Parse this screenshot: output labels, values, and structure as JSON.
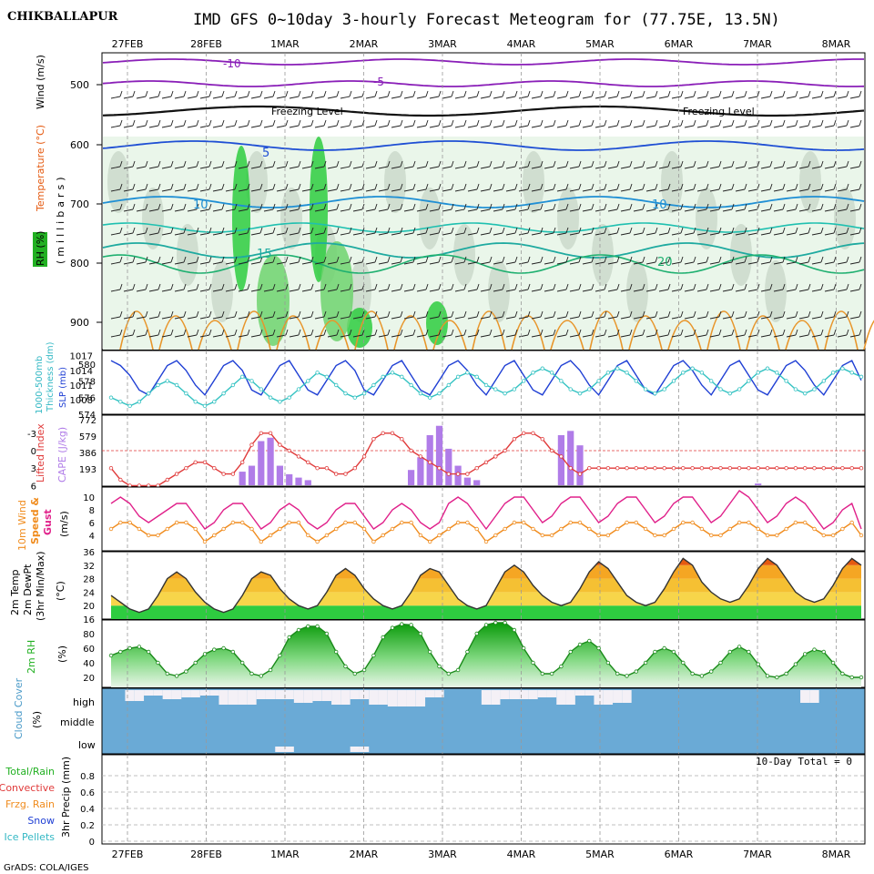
{
  "header": {
    "station": "CHIKBALLAPUR",
    "title": "IMD GFS 0~10day 3-hourly Forecast Meteogram for (77.75E, 13.5N)",
    "footer": "GrADS: COLA/IGES"
  },
  "dates": [
    "27FEB",
    "28FEB",
    "1MAR",
    "2MAR",
    "3MAR",
    "4MAR",
    "5MAR",
    "6MAR",
    "7MAR",
    "8MAR"
  ],
  "colors": {
    "slp": "#1f3fd4",
    "thickness": "#33c2c2",
    "lifted": "#e03a3a",
    "cape": "#b07ce8",
    "gust": "#e0208a",
    "wind": "#f08c1e",
    "rh": "#22c022",
    "cloud": "#6aaad6",
    "temp_hot": "#e55a10",
    "temp_warm": "#f5a623",
    "temp_mild": "#f7d54a",
    "temp_cool": "#2ecc40",
    "freezing": "#000000"
  },
  "panels": {
    "upper": {
      "left_labels": [
        "RH (%)",
        "Temperature (°C)",
        "Wind (m/s)"
      ],
      "axis_label": "(millibars)",
      "yticks": [
        "500",
        "600",
        "700",
        "800",
        "900"
      ],
      "freezing_label": "Freezing Level",
      "iso_labels": [
        "-10",
        "-5",
        "5",
        "10",
        "15",
        "20"
      ]
    },
    "slp": {
      "left_labels": [
        "1000-500mb",
        "Thickness (dm)",
        "SLP (mb)"
      ],
      "left_ticks": [
        "580",
        "578",
        "576",
        "574"
      ],
      "right_ticks": [
        "1017",
        "1014",
        "1011",
        "1008"
      ]
    },
    "cape": {
      "left_labels": [
        "Lifted Index",
        "CAPE (J/kg)"
      ],
      "left_ticks": [
        "-3",
        "0",
        "3",
        "6"
      ],
      "right_ticks": [
        "772",
        "579",
        "386",
        "193"
      ]
    },
    "wind": {
      "left_labels": [
        "10m Wind",
        "Speed &",
        "Gust",
        "(m/s)"
      ],
      "yticks": [
        "10",
        "8",
        "6",
        "4"
      ]
    },
    "temp": {
      "left_labels": [
        "2m Temp",
        "2m DewPt",
        "(3hr Min/Max)",
        "(°C)"
      ],
      "yticks": [
        "36",
        "32",
        "28",
        "24",
        "20",
        "16"
      ]
    },
    "rh": {
      "left_labels": [
        "2m RH",
        "(%)"
      ],
      "yticks": [
        "80",
        "60",
        "40",
        "20"
      ]
    },
    "cloud": {
      "left_labels": [
        "Cloud Cover",
        "(%)"
      ],
      "levels": [
        "high",
        "middle",
        "low"
      ]
    },
    "precip": {
      "left_labels": [
        "Total/Rain",
        "Convective",
        "Frzg. Rain",
        "Snow",
        "Ice Pellets"
      ],
      "axis_label": "3hr Precip (mm)",
      "yticks": [
        "0.8",
        "0.6",
        "0.4",
        "0.2",
        "0"
      ],
      "total_label": "10-Day Total = 0"
    }
  },
  "chart_data": [
    {
      "type": "line",
      "title": "SLP (mb) and 1000-500mb Thickness (dm)",
      "series": [
        {
          "name": "SLP (mb)",
          "values": [
            1016,
            1015,
            1013,
            1010,
            1009,
            1012,
            1015,
            1016,
            1014,
            1011,
            1009,
            1012,
            1015,
            1016,
            1014,
            1010,
            1009,
            1012,
            1015,
            1016,
            1013,
            1010,
            1009,
            1012,
            1015,
            1016,
            1014,
            1010,
            1009,
            1012,
            1015,
            1016,
            1013,
            1010,
            1009,
            1012,
            1015,
            1016,
            1014,
            1011,
            1009,
            1012,
            1015,
            1016,
            1013,
            1010,
            1009,
            1012,
            1015,
            1016,
            1014,
            1011,
            1009,
            1012,
            1015,
            1016,
            1013,
            1010,
            1009,
            1012,
            1015,
            1016,
            1014,
            1011,
            1009,
            1012,
            1015,
            1016,
            1013,
            1010,
            1009,
            1012,
            1015,
            1016,
            1014,
            1011,
            1009,
            1012,
            1015,
            1016,
            1012
          ]
        },
        {
          "name": "1000-500mb Thickness (dm)",
          "values": [
            576,
            575.5,
            575,
            575.5,
            576.5,
            577.5,
            578,
            577.5,
            576.5,
            575.5,
            575,
            575.5,
            576.5,
            577.5,
            578.5,
            578,
            577,
            576,
            575.5,
            576,
            577,
            578,
            579,
            578.5,
            577.5,
            576.5,
            576,
            576.5,
            577.5,
            578.5,
            579,
            578.5,
            577.5,
            576.5,
            576,
            576.5,
            577.5,
            578.5,
            579,
            578.5,
            577.5,
            577,
            576.5,
            577,
            578,
            579,
            579.5,
            579,
            578,
            577,
            576.5,
            577,
            578,
            579,
            579.5,
            579,
            578,
            577,
            576.5,
            577,
            578,
            579,
            579.5,
            579,
            578,
            577,
            576.5,
            577,
            578,
            579,
            579.5,
            579,
            578,
            577,
            576.5,
            577,
            578,
            579,
            579.5,
            579,
            578.5
          ]
        }
      ]
    },
    {
      "type": "bar",
      "title": "Lifted Index / CAPE (J/kg)",
      "series": [
        {
          "name": "CAPE (J/kg)",
          "values": [
            0,
            0,
            0,
            0,
            0,
            0,
            0,
            0,
            0,
            0,
            0,
            0,
            0,
            0,
            160,
            230,
            520,
            560,
            230,
            130,
            90,
            60,
            0,
            0,
            0,
            0,
            0,
            0,
            0,
            0,
            0,
            0,
            180,
            330,
            590,
            700,
            430,
            230,
            90,
            60,
            0,
            0,
            0,
            0,
            0,
            0,
            0,
            0,
            590,
            640,
            470,
            0,
            0,
            0,
            0,
            0,
            0,
            0,
            0,
            0,
            0,
            0,
            0,
            0,
            0,
            0,
            0,
            0,
            0,
            20,
            0,
            0,
            0,
            0,
            0,
            0,
            0,
            0,
            0,
            0,
            0
          ]
        },
        {
          "name": "Lifted Index",
          "values": [
            3,
            5,
            6,
            6,
            6,
            6,
            5,
            4,
            3,
            2,
            2,
            3,
            4,
            4,
            2,
            -1,
            -3,
            -3,
            -1,
            0,
            1,
            2,
            3,
            3,
            4,
            4,
            3,
            1,
            -2,
            -3,
            -3,
            -2,
            0,
            1,
            2,
            3,
            4,
            4,
            4,
            3,
            2,
            1,
            0,
            -2,
            -3,
            -3,
            -2,
            0,
            1,
            3,
            4,
            3,
            3,
            3,
            3,
            3,
            3,
            3,
            3,
            3,
            3,
            3,
            3,
            3,
            3,
            3,
            3,
            3,
            3,
            3,
            3,
            3,
            3,
            3,
            3,
            3,
            3,
            3,
            3,
            3,
            3
          ]
        }
      ]
    },
    {
      "type": "line",
      "title": "10m Wind Speed & Gust (m/s)",
      "series": [
        {
          "name": "Gust",
          "values": [
            9,
            10,
            9,
            7,
            6,
            7,
            8,
            9,
            9,
            7,
            5,
            6,
            8,
            9,
            9,
            7,
            5,
            6,
            8,
            9,
            8,
            6,
            5,
            6,
            8,
            9,
            9,
            7,
            5,
            6,
            8,
            9,
            8,
            6,
            5,
            6,
            9,
            10,
            9,
            7,
            5,
            7,
            9,
            10,
            10,
            8,
            6,
            7,
            9,
            10,
            10,
            8,
            6,
            7,
            9,
            10,
            10,
            8,
            6,
            7,
            9,
            10,
            10,
            8,
            6,
            7,
            9,
            11,
            10,
            8,
            6,
            7,
            9,
            10,
            9,
            7,
            5,
            6,
            8,
            9,
            5
          ]
        },
        {
          "name": "Speed",
          "values": [
            5,
            6,
            6,
            5,
            4,
            4,
            5,
            6,
            6,
            5,
            3,
            4,
            5,
            6,
            6,
            5,
            3,
            4,
            5,
            6,
            6,
            4,
            3,
            4,
            5,
            6,
            6,
            5,
            3,
            4,
            5,
            6,
            6,
            4,
            3,
            4,
            5,
            6,
            6,
            5,
            3,
            4,
            5,
            6,
            6,
            5,
            4,
            4,
            5,
            6,
            6,
            5,
            4,
            4,
            5,
            6,
            6,
            5,
            4,
            4,
            5,
            6,
            6,
            5,
            4,
            4,
            5,
            6,
            6,
            5,
            4,
            4,
            5,
            6,
            6,
            5,
            4,
            4,
            5,
            6,
            4
          ]
        }
      ]
    },
    {
      "type": "area",
      "title": "2m Temp (°C)",
      "series": [
        {
          "name": "2m Temp",
          "values": [
            23,
            21,
            19,
            18,
            19,
            23,
            28,
            30,
            28,
            24,
            21,
            19,
            18,
            19,
            23,
            28,
            30,
            29,
            25,
            22,
            20,
            19,
            20,
            24,
            29,
            31,
            29,
            25,
            22,
            20,
            19,
            20,
            24,
            29,
            31,
            30,
            26,
            22,
            20,
            19,
            20,
            25,
            30,
            32,
            30,
            26,
            23,
            21,
            20,
            21,
            25,
            30,
            33,
            31,
            27,
            23,
            21,
            20,
            21,
            25,
            30,
            34,
            32,
            27,
            24,
            22,
            21,
            22,
            26,
            31,
            34,
            32,
            28,
            24,
            22,
            21,
            22,
            26,
            31,
            34,
            32
          ]
        }
      ]
    },
    {
      "type": "area",
      "title": "2m RH (%)",
      "series": [
        {
          "name": "2m RH",
          "values": [
            50,
            55,
            60,
            62,
            55,
            40,
            25,
            22,
            28,
            40,
            52,
            58,
            60,
            55,
            40,
            25,
            22,
            30,
            50,
            75,
            85,
            90,
            90,
            80,
            55,
            35,
            25,
            30,
            50,
            75,
            88,
            93,
            92,
            80,
            55,
            35,
            25,
            30,
            55,
            80,
            92,
            95,
            95,
            85,
            60,
            40,
            25,
            25,
            35,
            55,
            65,
            70,
            60,
            40,
            25,
            22,
            28,
            40,
            55,
            60,
            55,
            40,
            25,
            22,
            28,
            40,
            55,
            62,
            55,
            38,
            22,
            20,
            25,
            38,
            52,
            58,
            55,
            40,
            25,
            20,
            20
          ]
        }
      ]
    },
    {
      "type": "area",
      "title": "Cloud Cover (%)",
      "series": [
        {
          "name": "high",
          "values": [
            0,
            0,
            30,
            30,
            15,
            15,
            25,
            25,
            20,
            20,
            15,
            15,
            40,
            40,
            40,
            40,
            25,
            25,
            25,
            25,
            35,
            35,
            30,
            30,
            40,
            40,
            25,
            25,
            40,
            40,
            45,
            45,
            45,
            45,
            20,
            20,
            0,
            0,
            0,
            0,
            40,
            40,
            25,
            25,
            25,
            25,
            20,
            20,
            40,
            40,
            15,
            15,
            40,
            40,
            35,
            35,
            0,
            0,
            0,
            0,
            0,
            0,
            0,
            0,
            0,
            0,
            0,
            0,
            0,
            0,
            0,
            0,
            0,
            0,
            35,
            35,
            0,
            0,
            0,
            0,
            0
          ]
        },
        {
          "name": "middle",
          "values": [
            0,
            0,
            0,
            0,
            0,
            0,
            0,
            0,
            0,
            0,
            0,
            0,
            0,
            0,
            0,
            0,
            0,
            0,
            0,
            0,
            0,
            0,
            0,
            0,
            0,
            0,
            0,
            0,
            0,
            0,
            0,
            0,
            0,
            0,
            0,
            0,
            0,
            0,
            0,
            0,
            0,
            0,
            0,
            0,
            0,
            0,
            0,
            0,
            0,
            0,
            0,
            0,
            0,
            0,
            0,
            0,
            0,
            0,
            0,
            0,
            0,
            0,
            0,
            0,
            0,
            0,
            0,
            0,
            0,
            0,
            0,
            0,
            0,
            0,
            0,
            0,
            0,
            0,
            0,
            0,
            0
          ]
        },
        {
          "name": "low",
          "values": [
            0,
            0,
            0,
            0,
            0,
            0,
            0,
            0,
            0,
            0,
            0,
            0,
            0,
            0,
            0,
            0,
            0,
            0,
            20,
            20,
            0,
            0,
            0,
            0,
            0,
            0,
            20,
            20,
            0,
            0,
            0,
            0,
            0,
            0,
            0,
            0,
            0,
            0,
            0,
            0,
            0,
            0,
            0,
            0,
            0,
            0,
            0,
            0,
            0,
            0,
            0,
            0,
            0,
            0,
            0,
            0,
            0,
            0,
            0,
            0,
            0,
            0,
            0,
            0,
            0,
            0,
            0,
            0,
            0,
            0,
            0,
            0,
            0,
            0,
            0,
            0,
            0,
            0,
            0,
            0,
            0
          ]
        }
      ]
    },
    {
      "type": "bar",
      "title": "3hr Precip (mm)",
      "ylim": [
        0,
        1
      ],
      "series": [
        {
          "name": "Total/Rain",
          "values": [
            0,
            0,
            0,
            0,
            0,
            0,
            0,
            0,
            0,
            0
          ]
        }
      ]
    }
  ]
}
